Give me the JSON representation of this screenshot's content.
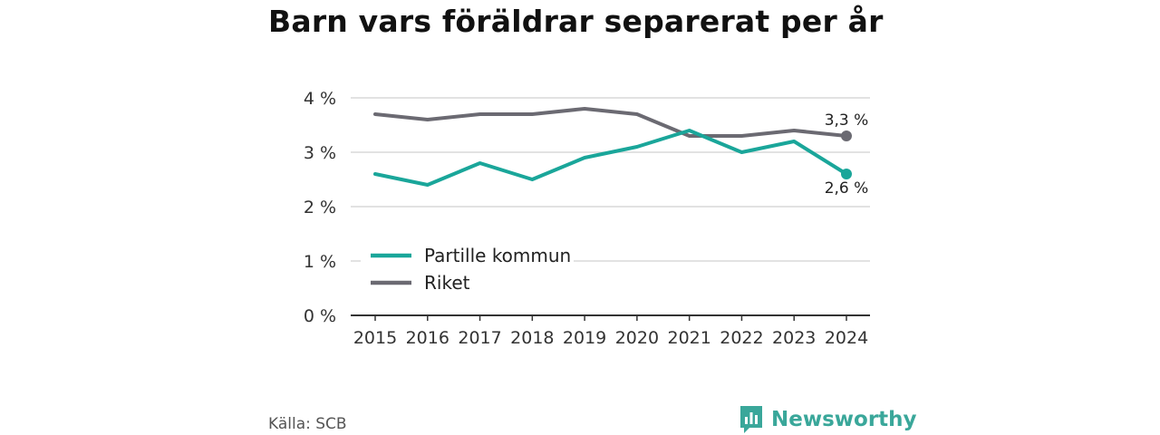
{
  "title": "Barn vars föräldrar separerat per år",
  "source": "Källa: SCB",
  "brand": "Newsworthy",
  "colors": {
    "teal": "#1aa69a",
    "gray": "#6b6a72",
    "grid": "#d9d9d9",
    "axis": "#333333"
  },
  "chart_data": {
    "type": "line",
    "title": "Barn vars föräldrar separerat per år",
    "x": [
      "2015",
      "2016",
      "2017",
      "2018",
      "2019",
      "2020",
      "2021",
      "2022",
      "2023",
      "2024"
    ],
    "yticks": [
      "0 %",
      "1 %",
      "2 %",
      "3 %",
      "4 %"
    ],
    "ylim": [
      0,
      4
    ],
    "grid": true,
    "legend_position": "inside-lower-left",
    "series": [
      {
        "name": "Partille kommun",
        "color": "#1aa69a",
        "values": [
          2.6,
          2.4,
          2.8,
          2.5,
          2.9,
          3.1,
          3.4,
          3.0,
          3.2,
          2.6
        ],
        "end_label": "2,6 %"
      },
      {
        "name": "Riket",
        "color": "#6b6a72",
        "values": [
          3.7,
          3.6,
          3.7,
          3.7,
          3.8,
          3.7,
          3.3,
          3.3,
          3.4,
          3.3
        ],
        "end_label": "3,3 %"
      }
    ]
  }
}
